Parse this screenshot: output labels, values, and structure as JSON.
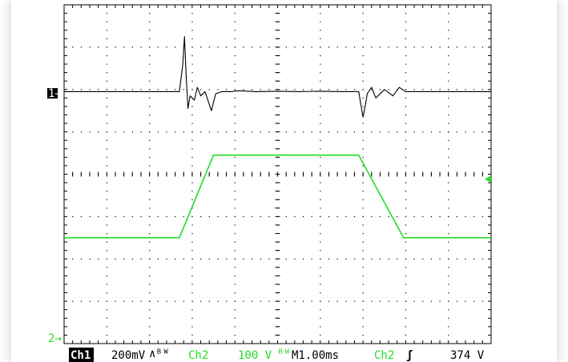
{
  "readout": {
    "ch1_label": "Ch1",
    "ch1_scale": "200mV",
    "ch1_bw_symbol": "∧ᴮᵂ",
    "ch2_label": "Ch2",
    "ch2_scale": "100 V",
    "ch2_bw_symbol": "ᴮᵂ",
    "timebase": "M1.00ms",
    "trigger_source": "Ch2",
    "trigger_slope_symbol": "ʃ",
    "trigger_level": "374 V"
  },
  "markers": {
    "ch1_marker": "1→",
    "ch2_marker": "2→"
  },
  "colors": {
    "ch1": "#000000",
    "ch2": "#22dd22",
    "grid": "#000000",
    "trigger_marker": "#22dd22"
  },
  "chart_data": {
    "type": "line",
    "grid": true,
    "x_divisions": 10,
    "y_divisions": 8,
    "xlim_div": [
      0,
      10
    ],
    "ylim_div": [
      -4,
      4
    ],
    "series": [
      {
        "name": "Ch1",
        "baseline_div": 1.95,
        "x_div": [
          0,
          2.7,
          2.78,
          2.82,
          2.86,
          2.9,
          2.95,
          3.05,
          3.12,
          3.2,
          3.3,
          3.45,
          3.55,
          3.7,
          3.9,
          4.1,
          4.5,
          5,
          5.5,
          6,
          6.5,
          6.9,
          6.95,
          7.0,
          7.05,
          7.1,
          7.2,
          7.3,
          7.5,
          7.7,
          7.85,
          8.0,
          10
        ],
        "y_div": [
          1.95,
          1.95,
          2.6,
          3.25,
          2.3,
          1.55,
          1.85,
          1.75,
          2.05,
          1.85,
          1.95,
          1.5,
          1.9,
          1.95,
          1.95,
          1.97,
          1.95,
          1.96,
          1.95,
          1.96,
          1.95,
          1.95,
          1.65,
          1.35,
          1.6,
          1.9,
          2.05,
          1.8,
          2.0,
          1.85,
          2.05,
          1.95,
          1.95
        ]
      },
      {
        "name": "Ch2",
        "x_div": [
          0,
          2.7,
          3.5,
          6.9,
          7.95,
          10
        ],
        "y_div": [
          -1.5,
          -1.5,
          0.45,
          0.45,
          -1.5,
          -1.5
        ]
      }
    ]
  }
}
